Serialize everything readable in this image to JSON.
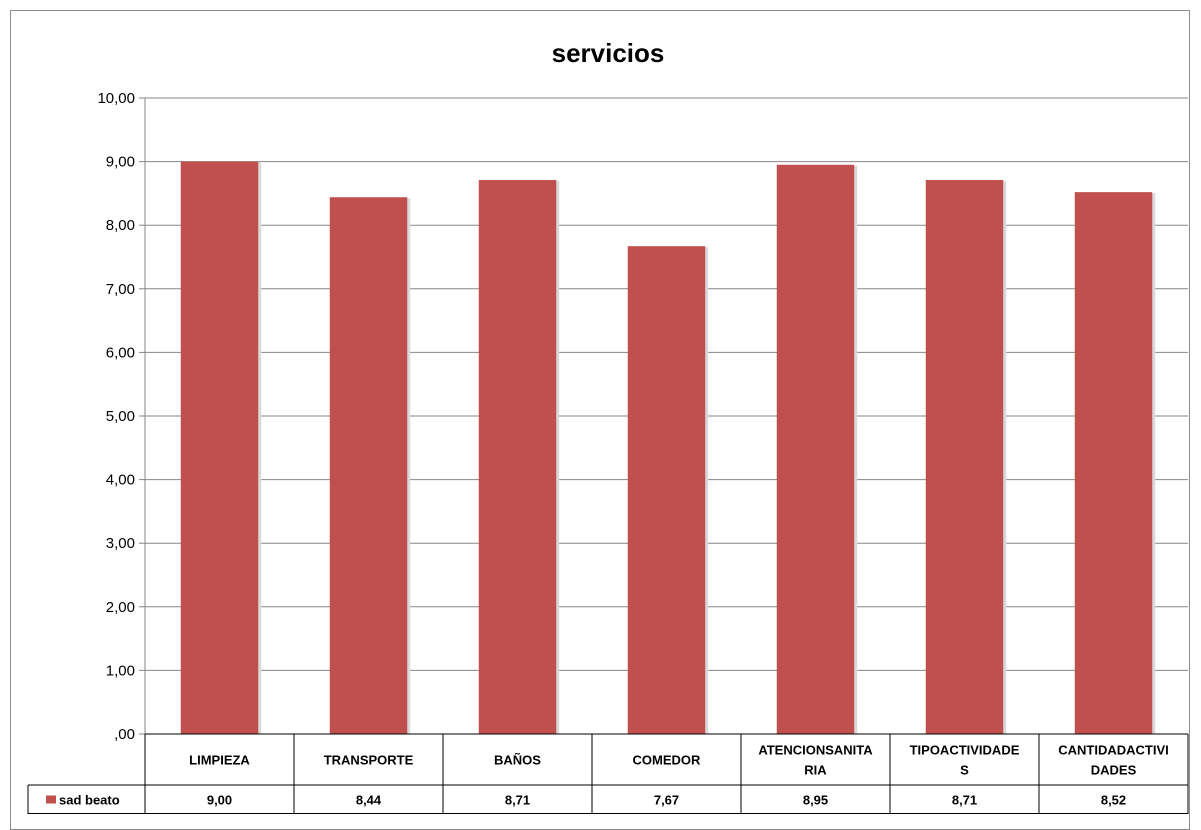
{
  "chart_data": {
    "type": "bar",
    "title": "servicios",
    "categories": [
      [
        "LIMPIEZA"
      ],
      [
        "TRANSPORTE"
      ],
      [
        "BAÑOS"
      ],
      [
        "COMEDOR"
      ],
      [
        "ATENCIONSANITA",
        "RIA"
      ],
      [
        "TIPOACTIVIDADE",
        "S"
      ],
      [
        "CANTIDADACTIVI",
        "DADES"
      ]
    ],
    "series": [
      {
        "name": "sad beato",
        "values": [
          9.0,
          8.44,
          8.71,
          7.67,
          8.95,
          8.71,
          8.52
        ],
        "value_labels": [
          "9,00",
          "8,44",
          "8,71",
          "7,67",
          "8,95",
          "8,71",
          "8,52"
        ],
        "color": "#c0504d"
      }
    ],
    "ylim": [
      0,
      10
    ],
    "yticks": [
      ",00",
      "1,00",
      "2,00",
      "3,00",
      "4,00",
      "5,00",
      "6,00",
      "7,00",
      "8,00",
      "9,00",
      "10,00"
    ],
    "grid": true,
    "legend": "data-table"
  }
}
